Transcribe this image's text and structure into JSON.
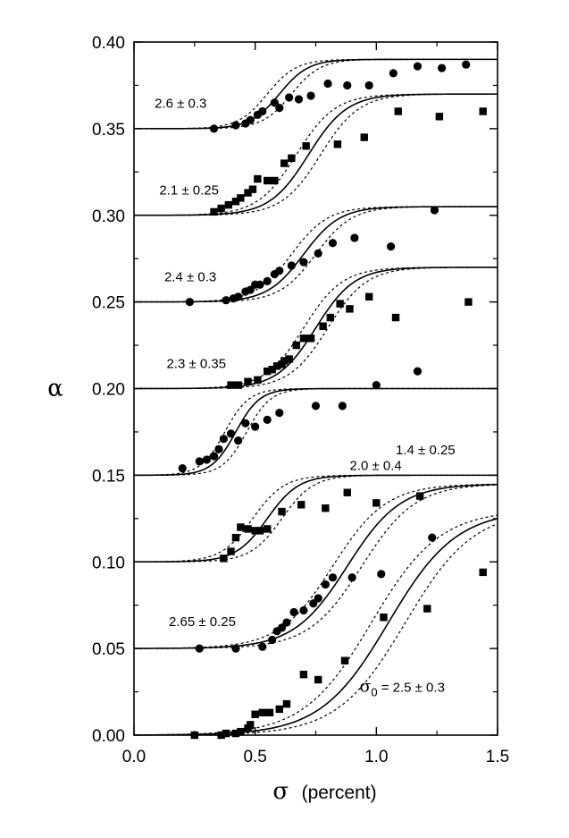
{
  "chart_data": {
    "type": "scatter",
    "xlabel": {
      "symbol": "σ",
      "unit": "(percent)"
    },
    "ylabel": "α",
    "xlim": [
      0.0,
      1.5
    ],
    "ylim": [
      0.0,
      0.4
    ],
    "x_ticks": [
      "0.0",
      "0.5",
      "1.0",
      "1.5"
    ],
    "y_ticks": [
      "0.00",
      "0.05",
      "0.10",
      "0.15",
      "0.20",
      "0.25",
      "0.30",
      "0.35",
      "0.40"
    ],
    "grid": false,
    "series": [
      {
        "label": "2.6 ± 0.3",
        "marker": "circle",
        "offset": 0.35,
        "amplitude": 0.04,
        "center": 0.6,
        "width": 0.12,
        "spread": 0.05,
        "points": [
          [
            0.33,
            0.35
          ],
          [
            0.42,
            0.352
          ],
          [
            0.46,
            0.353
          ],
          [
            0.48,
            0.355
          ],
          [
            0.51,
            0.358
          ],
          [
            0.53,
            0.36
          ],
          [
            0.58,
            0.365
          ],
          [
            0.6,
            0.362
          ],
          [
            0.64,
            0.368
          ],
          [
            0.68,
            0.367
          ],
          [
            0.73,
            0.369
          ],
          [
            0.8,
            0.376
          ],
          [
            0.88,
            0.375
          ],
          [
            0.97,
            0.375
          ],
          [
            1.07,
            0.382
          ],
          [
            1.17,
            0.386
          ],
          [
            1.27,
            0.385
          ],
          [
            1.37,
            0.387
          ]
        ]
      },
      {
        "label": "2.1 ± 0.25",
        "marker": "square",
        "offset": 0.3,
        "amplitude": 0.07,
        "center": 0.72,
        "width": 0.16,
        "spread": 0.05,
        "points": [
          [
            0.33,
            0.302
          ],
          [
            0.36,
            0.304
          ],
          [
            0.39,
            0.306
          ],
          [
            0.42,
            0.308
          ],
          [
            0.44,
            0.31
          ],
          [
            0.47,
            0.313
          ],
          [
            0.49,
            0.315
          ],
          [
            0.51,
            0.321
          ],
          [
            0.55,
            0.32
          ],
          [
            0.58,
            0.32
          ],
          [
            0.62,
            0.33
          ],
          [
            0.65,
            0.333
          ],
          [
            0.71,
            0.34
          ],
          [
            0.84,
            0.341
          ],
          [
            0.95,
            0.345
          ],
          [
            1.09,
            0.36
          ],
          [
            1.26,
            0.357
          ],
          [
            1.44,
            0.36
          ]
        ]
      },
      {
        "label": "2.4 ± 0.3",
        "marker": "circle",
        "offset": 0.25,
        "amplitude": 0.055,
        "center": 0.7,
        "width": 0.15,
        "spread": 0.05,
        "points": [
          [
            0.23,
            0.25
          ],
          [
            0.38,
            0.251
          ],
          [
            0.41,
            0.252
          ],
          [
            0.43,
            0.253
          ],
          [
            0.46,
            0.256
          ],
          [
            0.48,
            0.257
          ],
          [
            0.5,
            0.26
          ],
          [
            0.52,
            0.26
          ],
          [
            0.55,
            0.262
          ],
          [
            0.58,
            0.266
          ],
          [
            0.6,
            0.268
          ],
          [
            0.65,
            0.271
          ],
          [
            0.7,
            0.273
          ],
          [
            0.76,
            0.278
          ],
          [
            0.82,
            0.284
          ],
          [
            0.91,
            0.287
          ],
          [
            1.06,
            0.282
          ],
          [
            1.24,
            0.303
          ]
        ]
      },
      {
        "label": "2.3 ± 0.35",
        "marker": "square",
        "offset": 0.2,
        "amplitude": 0.07,
        "center": 0.75,
        "width": 0.16,
        "spread": 0.05,
        "points": [
          [
            0.4,
            0.202
          ],
          [
            0.43,
            0.202
          ],
          [
            0.47,
            0.204
          ],
          [
            0.51,
            0.205
          ],
          [
            0.55,
            0.21
          ],
          [
            0.57,
            0.211
          ],
          [
            0.59,
            0.213
          ],
          [
            0.61,
            0.214
          ],
          [
            0.62,
            0.216
          ],
          [
            0.64,
            0.217
          ],
          [
            0.67,
            0.225
          ],
          [
            0.7,
            0.229
          ],
          [
            0.73,
            0.229
          ],
          [
            0.78,
            0.236
          ],
          [
            0.81,
            0.241
          ],
          [
            0.85,
            0.249
          ],
          [
            0.89,
            0.246
          ],
          [
            0.97,
            0.253
          ],
          [
            1.08,
            0.241
          ],
          [
            1.38,
            0.25
          ]
        ]
      },
      {
        "label": "1.4 ± 0.25",
        "marker": "circle",
        "offset": 0.15,
        "amplitude": 0.05,
        "center": 0.42,
        "width": 0.1,
        "spread": 0.045,
        "points": [
          [
            0.2,
            0.154
          ],
          [
            0.27,
            0.158
          ],
          [
            0.3,
            0.159
          ],
          [
            0.33,
            0.161
          ],
          [
            0.35,
            0.165
          ],
          [
            0.37,
            0.171
          ],
          [
            0.4,
            0.174
          ],
          [
            0.43,
            0.17
          ],
          [
            0.46,
            0.18
          ],
          [
            0.5,
            0.178
          ],
          [
            0.55,
            0.182
          ],
          [
            0.6,
            0.186
          ],
          [
            0.75,
            0.19
          ],
          [
            0.86,
            0.19
          ],
          [
            1.0,
            0.202
          ],
          [
            1.17,
            0.21
          ]
        ]
      },
      {
        "label": "2.0 ± 0.4",
        "marker": "square",
        "offset": 0.1,
        "amplitude": 0.05,
        "center": 0.55,
        "width": 0.13,
        "spread": 0.06,
        "points": [
          [
            0.37,
            0.102
          ],
          [
            0.4,
            0.106
          ],
          [
            0.42,
            0.114
          ],
          [
            0.44,
            0.12
          ],
          [
            0.47,
            0.119
          ],
          [
            0.5,
            0.118
          ],
          [
            0.52,
            0.118
          ],
          [
            0.55,
            0.119
          ],
          [
            0.61,
            0.129
          ],
          [
            0.69,
            0.133
          ],
          [
            0.79,
            0.131
          ],
          [
            0.88,
            0.14
          ],
          [
            1.0,
            0.134
          ],
          [
            1.18,
            0.138
          ]
        ]
      },
      {
        "label": "2.65 ± 0.25",
        "marker": "circle",
        "offset": 0.05,
        "amplitude": 0.095,
        "center": 0.88,
        "width": 0.22,
        "spread": 0.06,
        "points": [
          [
            0.27,
            0.05
          ],
          [
            0.42,
            0.05
          ],
          [
            0.53,
            0.051
          ],
          [
            0.57,
            0.055
          ],
          [
            0.59,
            0.06
          ],
          [
            0.61,
            0.062
          ],
          [
            0.63,
            0.065
          ],
          [
            0.66,
            0.071
          ],
          [
            0.7,
            0.072
          ],
          [
            0.74,
            0.076
          ],
          [
            0.76,
            0.079
          ],
          [
            0.79,
            0.087
          ],
          [
            0.82,
            0.091
          ],
          [
            0.9,
            0.091
          ],
          [
            1.02,
            0.093
          ],
          [
            1.23,
            0.114
          ]
        ]
      },
      {
        "label": "σ0 = 2.5 ± 0.3",
        "marker": "square",
        "offset": 0.0,
        "amplitude": 0.13,
        "center": 1.05,
        "width": 0.28,
        "spread": 0.07,
        "points": [
          [
            0.25,
            0.0
          ],
          [
            0.36,
            0.0
          ],
          [
            0.38,
            0.001
          ],
          [
            0.42,
            0.001
          ],
          [
            0.44,
            0.002
          ],
          [
            0.47,
            0.004
          ],
          [
            0.48,
            0.006
          ],
          [
            0.5,
            0.012
          ],
          [
            0.53,
            0.013
          ],
          [
            0.56,
            0.013
          ],
          [
            0.6,
            0.015
          ],
          [
            0.63,
            0.018
          ],
          [
            0.7,
            0.035
          ],
          [
            0.76,
            0.032
          ],
          [
            0.87,
            0.043
          ],
          [
            1.03,
            0.068
          ],
          [
            1.21,
            0.073
          ],
          [
            1.44,
            0.094
          ]
        ]
      }
    ]
  }
}
